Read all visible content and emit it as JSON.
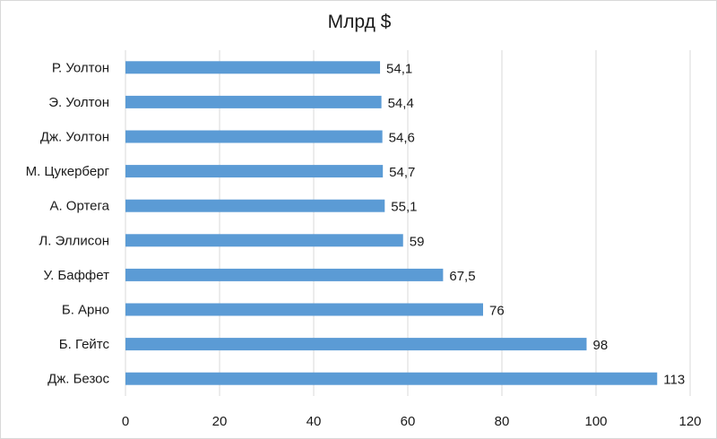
{
  "chart_data": {
    "type": "bar",
    "orientation": "horizontal",
    "title": "Млрд $",
    "categories": [
      "Р. Уолтон",
      "Э. Уолтон",
      "Дж. Уолтон",
      "М. Цукерберг",
      "А. Ортега",
      "Л. Эллисон",
      "У. Баффет",
      "Б. Арно",
      "Б. Гейтс",
      "Дж. Безос"
    ],
    "values": [
      54.1,
      54.4,
      54.6,
      54.7,
      55.1,
      59,
      67.5,
      76,
      98,
      113
    ],
    "value_labels": [
      "54,1",
      "54,4",
      "54,6",
      "54,7",
      "55,1",
      "59",
      "67,5",
      "76",
      "98",
      "113"
    ],
    "xlim": [
      0,
      120
    ],
    "xticks": [
      0,
      20,
      40,
      60,
      80,
      100,
      120
    ],
    "xtick_labels": [
      "0",
      "20",
      "40",
      "60",
      "80",
      "100",
      "120"
    ],
    "xlabel": "",
    "ylabel": "",
    "grid": "vertical",
    "legend": "none",
    "bar_color": "#5b9bd5",
    "grid_color": "#d9d9d9"
  }
}
